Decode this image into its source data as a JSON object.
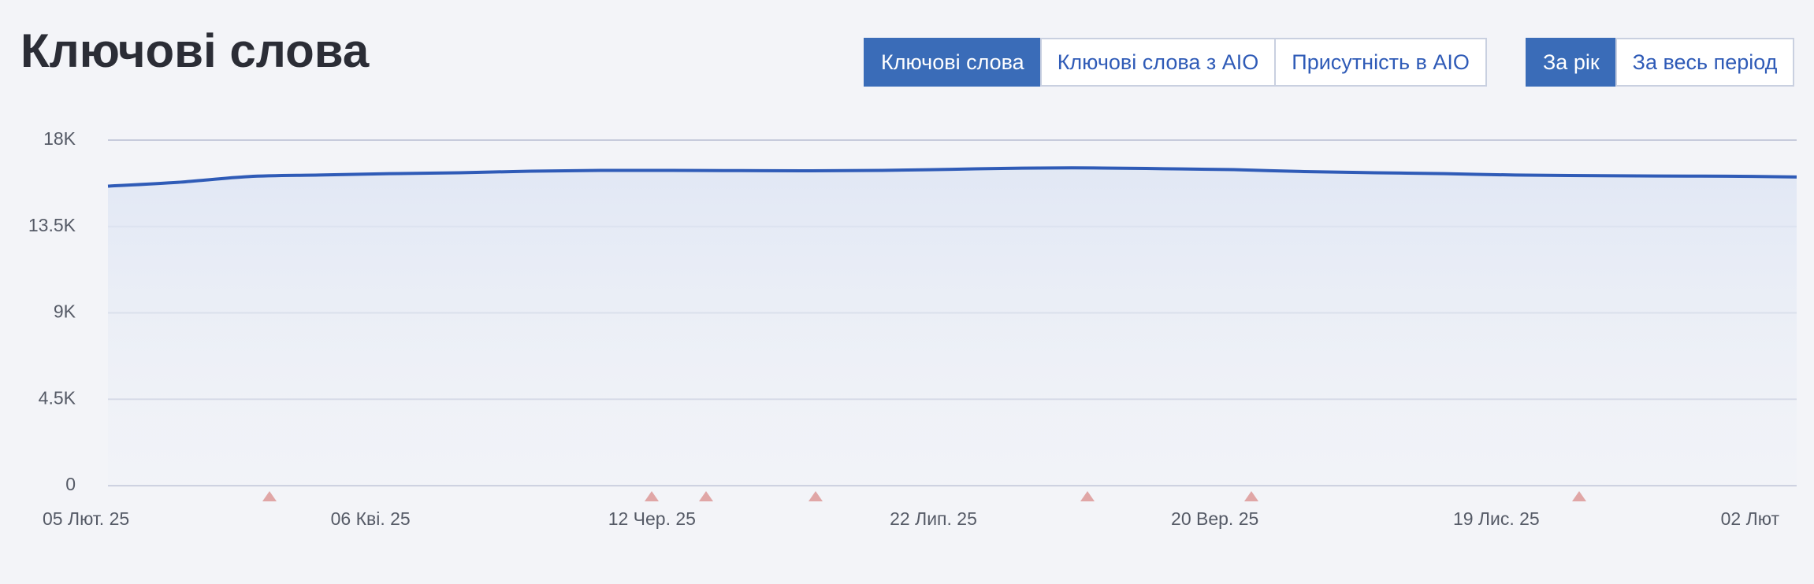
{
  "chart_data": {
    "type": "area-line",
    "title": "Ключові слова",
    "categories": [
      "05 Лют. 25",
      null,
      null,
      null,
      "06 Кві. 25",
      null,
      null,
      null,
      "12 Чер. 25",
      null,
      null,
      null,
      "22 Лип. 25",
      null,
      null,
      null,
      "20 Вер. 25",
      null,
      null,
      null,
      "19 Лис. 25",
      null,
      null,
      null,
      "02 Лют"
    ],
    "values": [
      15600,
      15800,
      16100,
      16180,
      16250,
      16300,
      16380,
      16420,
      16420,
      16410,
      16400,
      16420,
      16480,
      16540,
      16550,
      16510,
      16460,
      16360,
      16300,
      16250,
      16180,
      16150,
      16130,
      16120,
      16080
    ],
    "color": "#2f5bb7",
    "ylim": [
      0,
      18000
    ],
    "yticks": [
      0,
      {
        "value": 4500,
        "label": "4.5K"
      },
      {
        "value": 9000,
        "label": "9K"
      },
      {
        "value": 13500,
        "label": "13.5K"
      },
      {
        "value": 18000,
        "label": "18K"
      }
    ],
    "grid": true
  },
  "view_tabs": {
    "items": [
      "Ключові слова",
      "Ключові слова з AIO",
      "Присутність в AIO"
    ],
    "active": 0
  },
  "period_tabs": {
    "items": [
      "За рік",
      "За весь період"
    ],
    "active": 0
  }
}
